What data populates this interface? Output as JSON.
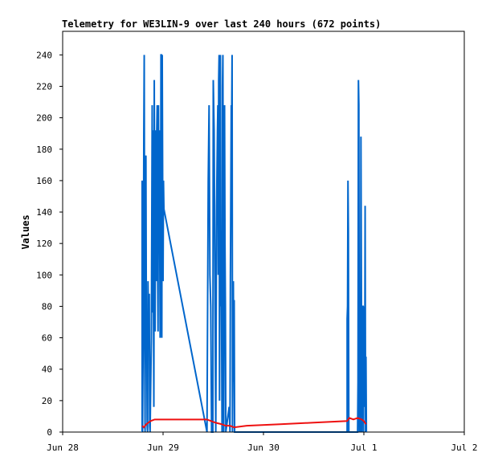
{
  "chart_data": {
    "type": "line",
    "title": "Telemetry for WE3LIN-9 over last 240 hours (672 points)",
    "xlabel": "",
    "ylabel": "Values",
    "x_unit": "hours since Jun 28 00:00",
    "xlim": [
      0,
      96
    ],
    "ylim": [
      0,
      255
    ],
    "x_ticks": [
      {
        "x": 0,
        "label": "Jun 28"
      },
      {
        "x": 24,
        "label": "Jun 29"
      },
      {
        "x": 48,
        "label": "Jun 30"
      },
      {
        "x": 72,
        "label": "Jul 1"
      },
      {
        "x": 96,
        "label": "Jul 2"
      }
    ],
    "y_ticks": [
      0,
      20,
      40,
      60,
      80,
      100,
      120,
      140,
      160,
      180,
      200,
      220,
      240
    ],
    "grid": false,
    "legend": "none",
    "series": [
      {
        "color": "#0066cc",
        "points": [
          [
            19.0,
            0
          ],
          [
            19.0,
            160
          ],
          [
            19.1,
            0
          ],
          [
            19.3,
            84
          ],
          [
            19.4,
            188
          ],
          [
            19.5,
            240
          ],
          [
            19.6,
            60
          ],
          [
            19.7,
            0
          ],
          [
            19.8,
            96
          ],
          [
            19.9,
            176
          ],
          [
            20.0,
            70
          ],
          [
            20.1,
            64
          ],
          [
            20.2,
            4
          ],
          [
            20.3,
            0
          ],
          [
            20.4,
            96
          ],
          [
            20.5,
            72
          ],
          [
            20.6,
            64
          ],
          [
            20.7,
            88
          ],
          [
            20.8,
            4
          ],
          [
            20.9,
            0
          ],
          [
            21.2,
            60
          ],
          [
            21.3,
            128
          ],
          [
            21.4,
            208
          ],
          [
            21.5,
            76
          ],
          [
            21.6,
            192
          ],
          [
            21.7,
            88
          ],
          [
            21.8,
            16
          ],
          [
            21.9,
            224
          ],
          [
            22.0,
            100
          ],
          [
            22.1,
            64
          ],
          [
            22.2,
            192
          ],
          [
            22.3,
            160
          ],
          [
            22.4,
            96
          ],
          [
            22.5,
            192
          ],
          [
            22.6,
            208
          ],
          [
            22.7,
            112
          ],
          [
            22.8,
            64
          ],
          [
            22.9,
            208
          ],
          [
            23.0,
            132
          ],
          [
            23.1,
            192
          ],
          [
            23.2,
            128
          ],
          [
            23.3,
            60
          ],
          [
            23.4,
            96
          ],
          [
            23.5,
            240
          ],
          [
            23.6,
            240
          ],
          [
            23.7,
            60
          ],
          [
            23.8,
            240
          ],
          [
            23.9,
            160
          ],
          [
            24.0,
            96
          ],
          [
            24.1,
            160
          ],
          [
            24.2,
            142
          ],
          [
            34.5,
            0
          ],
          [
            34.8,
            160
          ],
          [
            35.0,
            208
          ],
          [
            35.2,
            100
          ],
          [
            35.4,
            80
          ],
          [
            35.6,
            0
          ],
          [
            35.9,
            0
          ],
          [
            36.0,
            224
          ],
          [
            36.2,
            192
          ],
          [
            36.4,
            100
          ],
          [
            36.6,
            0
          ],
          [
            36.8,
            144
          ],
          [
            37.0,
            192
          ],
          [
            37.1,
            208
          ],
          [
            37.2,
            100
          ],
          [
            37.3,
            224
          ],
          [
            37.4,
            240
          ],
          [
            37.5,
            20
          ],
          [
            37.6,
            120
          ],
          [
            37.7,
            240
          ],
          [
            37.8,
            80
          ],
          [
            37.9,
            128
          ],
          [
            38.0,
            64
          ],
          [
            38.1,
            0
          ],
          [
            38.2,
            220
          ],
          [
            38.3,
            240
          ],
          [
            38.4,
            100
          ],
          [
            38.5,
            0
          ],
          [
            38.6,
            96
          ],
          [
            38.7,
            208
          ],
          [
            38.8,
            120
          ],
          [
            38.9,
            80
          ],
          [
            39.0,
            0
          ],
          [
            39.8,
            16
          ],
          [
            40.0,
            0
          ],
          [
            40.1,
            100
          ],
          [
            40.3,
            208
          ],
          [
            40.4,
            200
          ],
          [
            40.5,
            240
          ],
          [
            40.6,
            0
          ],
          [
            40.7,
            48
          ],
          [
            40.8,
            96
          ],
          [
            40.9,
            32
          ],
          [
            41.0,
            84
          ],
          [
            41.1,
            0
          ],
          [
            68.0,
            0
          ],
          [
            68.0,
            72
          ],
          [
            68.1,
            80
          ],
          [
            68.2,
            160
          ],
          [
            68.3,
            128
          ],
          [
            68.4,
            0
          ],
          [
            70.5,
            0
          ],
          [
            70.6,
            32
          ],
          [
            70.7,
            224
          ],
          [
            70.8,
            208
          ],
          [
            70.9,
            0
          ],
          [
            71.1,
            48
          ],
          [
            71.2,
            0
          ],
          [
            71.3,
            188
          ],
          [
            71.4,
            96
          ],
          [
            71.5,
            0
          ],
          [
            71.6,
            80
          ],
          [
            71.8,
            80
          ],
          [
            71.9,
            0
          ],
          [
            72.0,
            80
          ],
          [
            72.1,
            48
          ],
          [
            72.2,
            16
          ],
          [
            72.3,
            144
          ],
          [
            72.4,
            0
          ],
          [
            72.5,
            48
          ],
          [
            72.6,
            0
          ]
        ]
      },
      {
        "color": "#ee1111",
        "points": [
          [
            19.0,
            4
          ],
          [
            19.4,
            3
          ],
          [
            20.0,
            5
          ],
          [
            20.5,
            6
          ],
          [
            21.0,
            7
          ],
          [
            22.0,
            8
          ],
          [
            23.0,
            8
          ],
          [
            24.0,
            8
          ],
          [
            28.0,
            8
          ],
          [
            34.5,
            8
          ],
          [
            35.5,
            7
          ],
          [
            36.5,
            6
          ],
          [
            38.0,
            5
          ],
          [
            39.0,
            4
          ],
          [
            40.0,
            4
          ],
          [
            41.0,
            3
          ],
          [
            44.0,
            4
          ],
          [
            52.0,
            5
          ],
          [
            60.0,
            6
          ],
          [
            68.0,
            7
          ],
          [
            68.5,
            9
          ],
          [
            69.5,
            8
          ],
          [
            70.5,
            9
          ],
          [
            71.5,
            8
          ],
          [
            72.0,
            7
          ],
          [
            72.5,
            5
          ]
        ]
      },
      {
        "color": "#000000",
        "points": [
          [
            19.0,
            0
          ],
          [
            72.6,
            0
          ]
        ]
      }
    ]
  }
}
